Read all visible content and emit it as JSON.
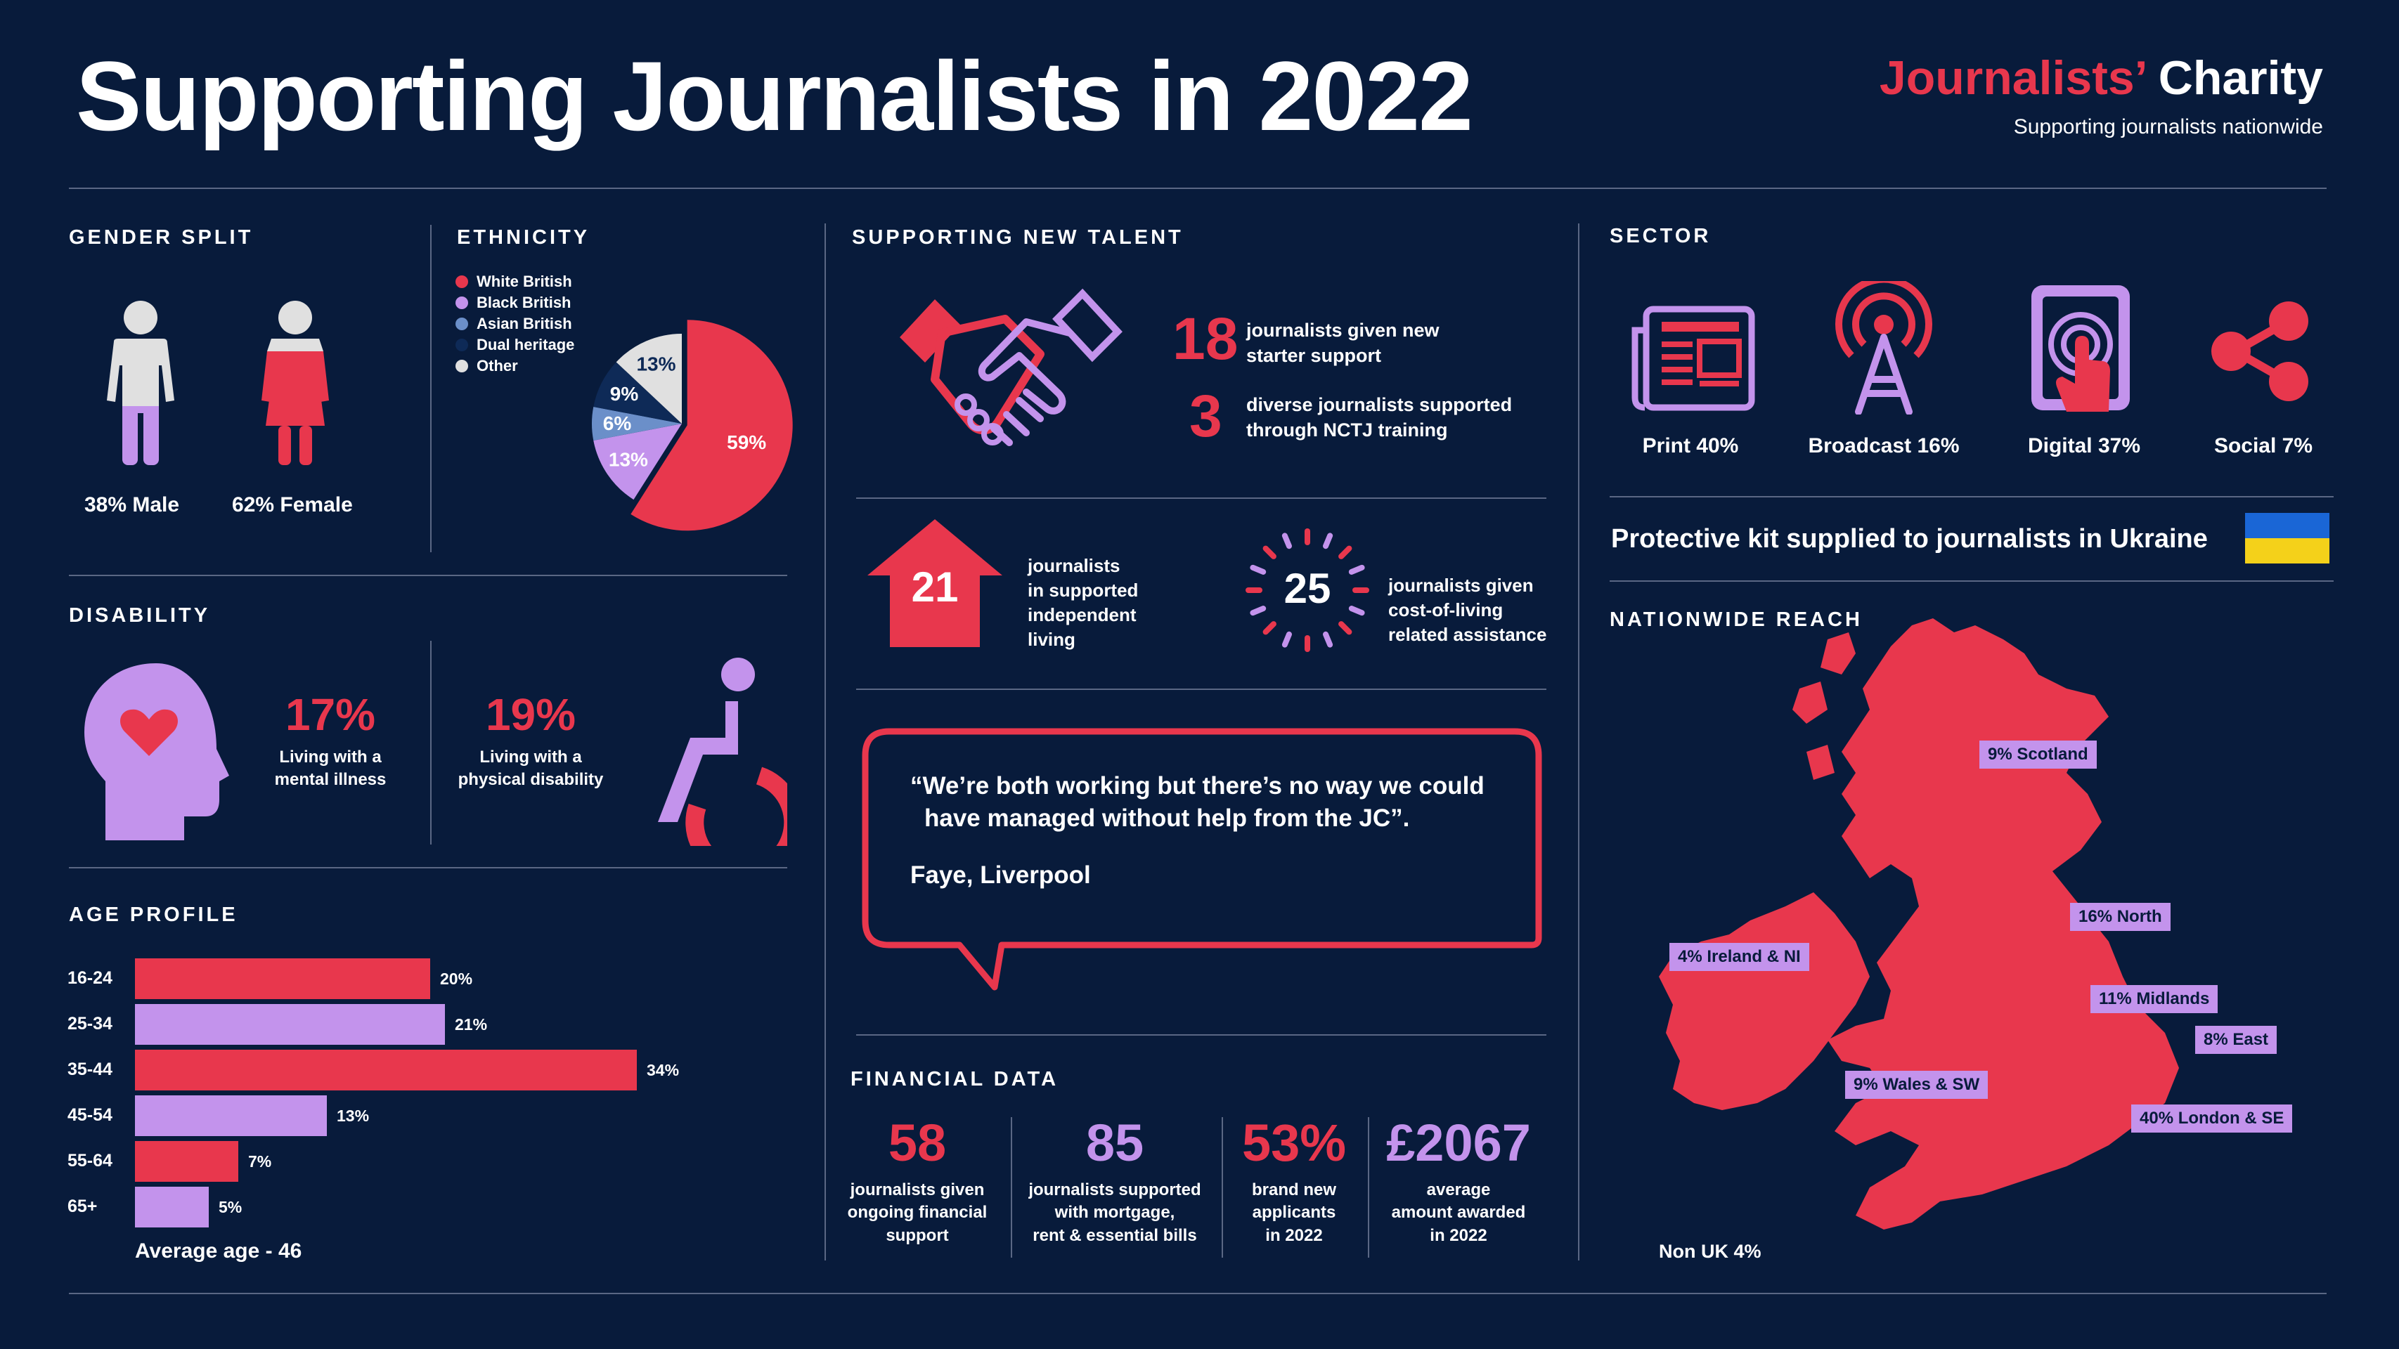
{
  "header": {
    "title": "Supporting Journalists in 2022",
    "brand_name_1": "Journalists’",
    "brand_name_2": "Charity",
    "brand_tagline": "Supporting journalists nationwide"
  },
  "gender": {
    "heading": "GENDER SPLIT",
    "male_label": "38% Male",
    "female_label": "62% Female",
    "male_pct": 38,
    "female_pct": 62
  },
  "ethnicity": {
    "heading": "ETHNICITY",
    "legend": [
      {
        "label": "White British",
        "color": "#e8374d"
      },
      {
        "label": "Black British",
        "color": "#c393ec"
      },
      {
        "label": "Asian British",
        "color": "#6b8fc9"
      },
      {
        "label": "Dual heritage",
        "color": "#0e2a57"
      },
      {
        "label": "Other",
        "color": "#e0e0e0"
      }
    ],
    "slices": [
      {
        "label": "59%",
        "value": 59,
        "color": "#e8374d"
      },
      {
        "label": "13%",
        "value": 13,
        "color": "#c393ec"
      },
      {
        "label": "6%",
        "value": 6,
        "color": "#6b8fc9"
      },
      {
        "label": "9%",
        "value": 9,
        "color": "#0e2a57"
      },
      {
        "label": "13%",
        "value": 13,
        "color": "#e0e0e0"
      }
    ]
  },
  "disability": {
    "heading": "DISABILITY",
    "mental_pct": "17%",
    "mental_text_1": "Living with a",
    "mental_text_2": "mental illness",
    "physical_pct": "19%",
    "physical_text_1": "Living with a",
    "physical_text_2": "physical disability"
  },
  "age": {
    "heading": "AGE PROFILE",
    "footer": "Average age - 46"
  },
  "chart_data": {
    "type": "bar",
    "orientation": "horizontal",
    "categories": [
      "16-24",
      "25-34",
      "35-44",
      "45-54",
      "55-64",
      "65+"
    ],
    "values": [
      20,
      21,
      34,
      13,
      7,
      5
    ],
    "value_labels": [
      "20%",
      "21%",
      "34%",
      "13%",
      "7%",
      "5%"
    ],
    "colors": [
      "#e8374d",
      "#c393ec",
      "#e8374d",
      "#c393ec",
      "#e8374d",
      "#c393ec"
    ]
  },
  "talent": {
    "heading": "SUPPORTING NEW TALENT",
    "stat1_num": "18",
    "stat1_text_1": "journalists given new",
    "stat1_text_2": "starter support",
    "stat2_num": "3",
    "stat2_text_1": "diverse journalists supported",
    "stat2_text_2": "through NCTJ training",
    "living_num": "21",
    "living_text": [
      "journalists",
      "in supported",
      "independent",
      "living"
    ],
    "col_num": "25",
    "col_text": [
      "journalists given",
      "cost-of-living",
      "related assistance"
    ]
  },
  "quote": {
    "text_1": "“We’re both working but there’s no way we could",
    "text_2": "have managed without help from the JC”.",
    "author": "Faye, Liverpool"
  },
  "financial": {
    "heading": "FINANCIAL DATA",
    "items": [
      {
        "num": "58",
        "color": "#e8374d",
        "lines": [
          "journalists given",
          "ongoing financial",
          "support"
        ]
      },
      {
        "num": "85",
        "color": "#c393ec",
        "lines": [
          "journalists supported",
          "with mortgage,",
          "rent & essential bills"
        ]
      },
      {
        "num": "53%",
        "color": "#e8374d",
        "lines": [
          "brand new",
          "applicants",
          "in 2022"
        ]
      },
      {
        "num": "£2067",
        "color": "#c393ec",
        "lines": [
          "average",
          "amount awarded",
          "in 2022"
        ]
      }
    ]
  },
  "sector": {
    "heading": "SECTOR",
    "items": [
      {
        "label": "Print 40%",
        "icon": "newspaper-icon"
      },
      {
        "label": "Broadcast 16%",
        "icon": "broadcast-tower-icon"
      },
      {
        "label": "Digital 37%",
        "icon": "touchscreen-icon"
      },
      {
        "label": "Social  7%",
        "icon": "share-icon"
      }
    ],
    "ukraine_text": "Protective kit supplied to journalists in Ukraine"
  },
  "reach": {
    "heading": "NATIONWIDE REACH",
    "scotland": "9% Scotland",
    "north": "16% North",
    "ireland": "4% Ireland & NI",
    "midlands": "11% Midlands",
    "east": "8% East",
    "wales": "9% Wales & SW",
    "london": "40% London & SE",
    "non_uk": "Non UK 4%"
  }
}
